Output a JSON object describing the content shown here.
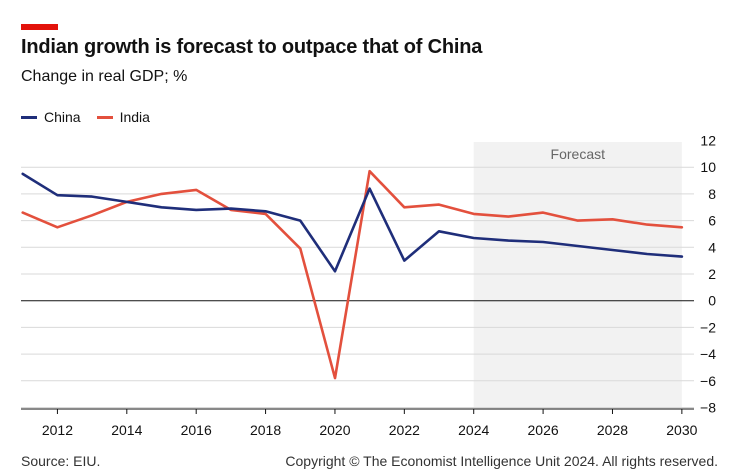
{
  "chart_data": {
    "type": "line",
    "title": "Indian growth is forecast to outpace that of China",
    "subtitle": "Change in real GDP; %",
    "x": [
      2011,
      2012,
      2013,
      2014,
      2015,
      2016,
      2017,
      2018,
      2019,
      2020,
      2021,
      2022,
      2023,
      2024,
      2025,
      2026,
      2027,
      2028,
      2029,
      2030
    ],
    "series": [
      {
        "name": "China",
        "color": "#1f2e7a",
        "values": [
          9.5,
          7.9,
          7.8,
          7.4,
          7.0,
          6.8,
          6.9,
          6.7,
          6.0,
          2.2,
          8.4,
          3.0,
          5.2,
          4.7,
          4.5,
          4.4,
          4.1,
          3.8,
          3.5,
          3.3
        ]
      },
      {
        "name": "India",
        "color": "#e3503d",
        "values": [
          6.6,
          5.5,
          6.4,
          7.4,
          8.0,
          8.3,
          6.8,
          6.5,
          3.9,
          -5.8,
          9.7,
          7.0,
          7.2,
          6.5,
          6.3,
          6.6,
          6.0,
          6.1,
          5.7,
          5.5
        ]
      }
    ],
    "xticks": [
      2012,
      2014,
      2016,
      2018,
      2020,
      2022,
      2024,
      2026,
      2028,
      2030
    ],
    "xtick_labels": [
      "2012",
      "2014",
      "2016",
      "2018",
      "2020",
      "2022",
      "2024",
      "2026",
      "2028",
      "2030"
    ],
    "yticks": [
      12,
      10,
      8,
      6,
      4,
      2,
      0,
      -2,
      -4,
      -6,
      -8
    ],
    "ytick_labels": [
      "12",
      "10",
      "8",
      "6",
      "4",
      "2",
      "0",
      "−2",
      "−4",
      "−6",
      "−8"
    ],
    "xlim": [
      2010.9,
      2030.3
    ],
    "ylim": [
      -8.5,
      12
    ],
    "forecast_range": [
      2024,
      2030
    ],
    "forecast_label": "Forecast",
    "grid": true,
    "legend": "top-left"
  },
  "brand": {
    "accent": "#e3120b"
  },
  "footer": {
    "source": "Source: EIU.",
    "copyright": "Copyright © The Economist Intelligence Unit 2024. All rights reserved."
  }
}
